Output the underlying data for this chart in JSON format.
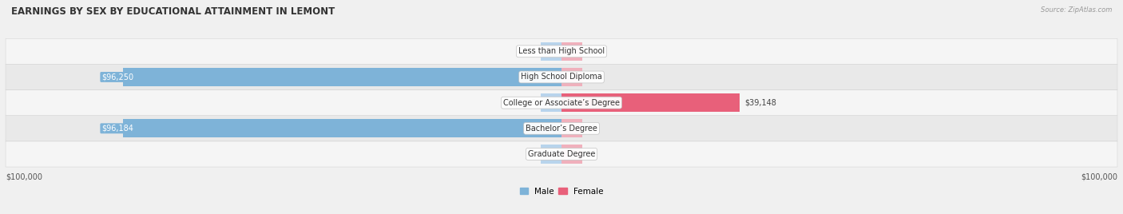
{
  "title": "EARNINGS BY SEX BY EDUCATIONAL ATTAINMENT IN LEMONT",
  "source": "Source: ZipAtlas.com",
  "categories": [
    "Less than High School",
    "High School Diploma",
    "College or Associate’s Degree",
    "Bachelor’s Degree",
    "Graduate Degree"
  ],
  "male_values": [
    0,
    96250,
    0,
    96184,
    0
  ],
  "female_values": [
    0,
    0,
    39148,
    0,
    0
  ],
  "max_value": 100000,
  "male_color": "#7eb3d8",
  "female_color": "#e8607a",
  "male_color_light": "#b8d4ec",
  "female_color_light": "#f0b0bc",
  "title_fontsize": 8.5,
  "label_fontsize": 7,
  "tick_fontsize": 7,
  "legend_fontsize": 7.5,
  "xlabel_left": "$100,000",
  "xlabel_right": "$100,000",
  "bg_color": "#f0f0f0",
  "row_colors": [
    "#f0f0f0",
    "#e8e8e8"
  ]
}
